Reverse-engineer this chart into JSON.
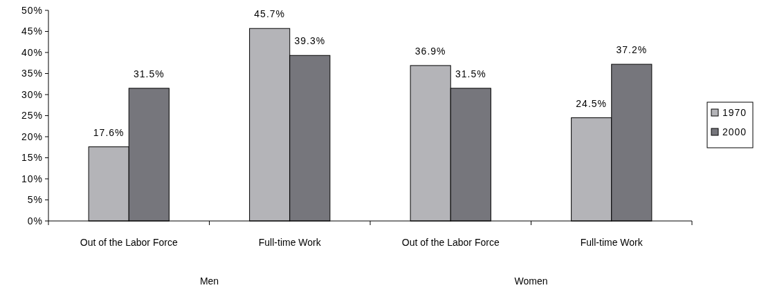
{
  "chart_data": {
    "type": "bar",
    "categories": [
      "Out of the Labor Force",
      "Full-time Work",
      "Out of the Labor Force",
      "Full-time Work"
    ],
    "series": [
      {
        "name": "1970",
        "color": "#b4b4b8",
        "values": [
          17.6,
          45.7,
          36.9,
          24.5
        ],
        "value_labels": [
          "17.6%",
          "45.7%",
          "36.9%",
          "24.5%"
        ]
      },
      {
        "name": "2000",
        "color": "#76767c",
        "values": [
          31.5,
          39.3,
          31.5,
          37.2
        ],
        "value_labels": [
          "31.5%",
          "39.3%",
          "31.5%",
          "37.2%"
        ]
      }
    ],
    "annotations": [
      "Men",
      "Women"
    ],
    "ylim": [
      0,
      50
    ],
    "yticks": [
      {
        "value": 0,
        "label": "0%"
      },
      {
        "value": 5,
        "label": "5%"
      },
      {
        "value": 10,
        "label": "10%"
      },
      {
        "value": 15,
        "label": "15%"
      },
      {
        "value": 20,
        "label": "20%"
      },
      {
        "value": 25,
        "label": "25%"
      },
      {
        "value": 30,
        "label": "30%"
      },
      {
        "value": 35,
        "label": "35%"
      },
      {
        "value": 40,
        "label": "40%"
      },
      {
        "value": 45,
        "label": "45%"
      },
      {
        "value": 50,
        "label": "50%"
      }
    ],
    "grid": false,
    "legend": "right"
  }
}
